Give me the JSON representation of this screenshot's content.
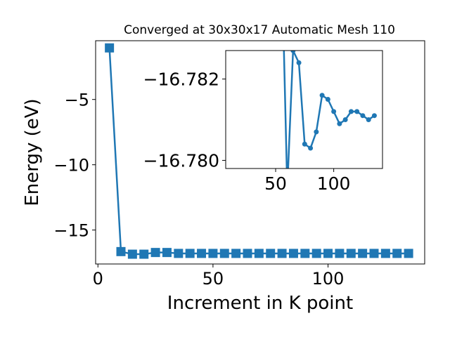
{
  "chart_data": [
    {
      "type": "line",
      "title": "Converged at 30x30x17 Automatic Mesh 110",
      "xlabel": "Increment in K point",
      "ylabel": "Energy (eV)",
      "xlim": [
        -1,
        142
      ],
      "ylim": [
        -17.6,
        -0.5
      ],
      "xticks": [
        {
          "value": 0,
          "label": "0"
        },
        {
          "value": 50,
          "label": "50"
        },
        {
          "value": 100,
          "label": "100"
        }
      ],
      "yticks": [
        {
          "value": -5,
          "label": "−5"
        },
        {
          "value": -10,
          "label": "−10"
        },
        {
          "value": -15,
          "label": "−15"
        }
      ],
      "grid": false,
      "color": "#1f77b4",
      "marker": "square",
      "x": [
        5,
        10,
        15,
        20,
        25,
        30,
        35,
        40,
        45,
        50,
        55,
        60,
        65,
        70,
        75,
        80,
        85,
        90,
        95,
        100,
        105,
        110,
        115,
        120,
        125,
        130,
        135
      ],
      "y": [
        -1.05,
        -16.65,
        -16.85,
        -16.85,
        -16.72,
        -16.72,
        -16.79,
        -16.79,
        -16.79,
        -16.79,
        -16.79,
        -16.79,
        -16.79,
        -16.79,
        -16.79,
        -16.79,
        -16.79,
        -16.79,
        -16.79,
        -16.79,
        -16.79,
        -16.79,
        -16.79,
        -16.79,
        -16.79,
        -16.79,
        -16.79
      ]
    },
    {
      "type": "line",
      "title": "",
      "xlabel": "",
      "ylabel": "",
      "xlim": [
        7,
        142
      ],
      "ylim": [
        -16.7798,
        -16.7827
      ],
      "xticks": [
        {
          "value": 50,
          "label": "50"
        },
        {
          "value": 100,
          "label": "100"
        }
      ],
      "yticks": [
        {
          "value": -16.782,
          "label": "−16.782"
        },
        {
          "value": -16.78,
          "label": "−16.780"
        }
      ],
      "grid": false,
      "color": "#1f77b4",
      "marker": "circle",
      "x": [
        55,
        60,
        65,
        70,
        75,
        80,
        85,
        90,
        95,
        100,
        105,
        110,
        115,
        120,
        125,
        130,
        135
      ],
      "y": [
        -16.7852,
        -16.7793,
        -16.7827,
        -16.7824,
        -16.7804,
        -16.7803,
        -16.7807,
        -16.7816,
        -16.7815,
        -16.7812,
        -16.7809,
        -16.781,
        -16.7812,
        -16.7812,
        -16.7811,
        -16.781,
        -16.7811
      ]
    }
  ]
}
